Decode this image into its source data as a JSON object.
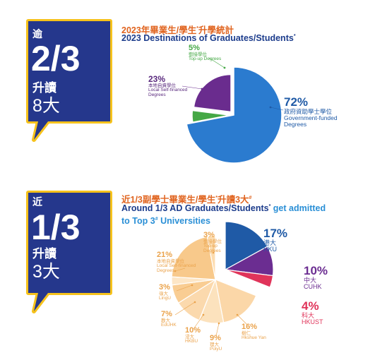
{
  "colors": {
    "badge_fill": "#25378c",
    "badge_border": "#f6c21c",
    "title_orange": "#e0631e",
    "title_navy": "#1c3c8c",
    "title_highlight": "#2a8fd6"
  },
  "section1": {
    "badge": {
      "prefix": "逾",
      "fraction": "2/3",
      "line1": "升讀",
      "line2": "8大"
    },
    "title_zh": "2023年畢業生/學生",
    "title_zh_sup": "*",
    "title_zh_tail": "升學統計",
    "title_en": "2023 Destinations of Graduates/Students",
    "title_en_sup": "*"
  },
  "section2": {
    "badge": {
      "prefix": "近",
      "fraction": "1/3",
      "line1": "升讀",
      "line2": "3大"
    },
    "title_zh": "近1/3副學士畢業生/學生",
    "title_zh_sup": "*",
    "title_zh_tail": "升讀3大",
    "title_zh_sup2": "#",
    "title_en_a": "Around 1/3 AD Graduates/Students",
    "title_en_sup": "*",
    "title_en_b": " get admitted",
    "title_en_c": "to Top 3",
    "title_en_sup2": "#",
    "title_en_d": " Universities"
  },
  "chart_data": [
    {
      "type": "pie",
      "title": "2023 Destinations of Graduates/Students",
      "slices": [
        {
          "pct_label": "72%",
          "value": 72,
          "zh": "政府資助學士學位",
          "en1": "Government-funded",
          "en2": "Degrees",
          "color": "#2b7bcf",
          "exploded": false
        },
        {
          "pct_label": "5%",
          "value": 5,
          "zh": "銜接學位",
          "en1": "Top-up Degrees",
          "en2": "",
          "color": "#45a845",
          "exploded": true
        },
        {
          "pct_label": "23%",
          "value": 23,
          "zh": "本地自資學位",
          "en1": "Local Self-financed",
          "en2": "Degrees",
          "color": "#6a2c8e",
          "exploded": true
        }
      ]
    },
    {
      "type": "pie",
      "title": "Around 1/3 AD Graduates/Students get admitted to Top 3 Universities",
      "slices": [
        {
          "pct_label": "17%",
          "value": 17,
          "zh": "港大",
          "en1": "HKU",
          "color": "#1f5aa6",
          "highlight": true
        },
        {
          "pct_label": "10%",
          "value": 10,
          "zh": "中大",
          "en1": "CUHK",
          "color": "#6b2d91",
          "highlight": true
        },
        {
          "pct_label": "4%",
          "value": 4,
          "zh": "科大",
          "en1": "HKUST",
          "color": "#e0345a",
          "highlight": true
        },
        {
          "pct_label": "16%",
          "value": 16,
          "zh": "樹仁",
          "en1": "Hkshue Yan",
          "color": "#fbd7a8",
          "highlight": false
        },
        {
          "pct_label": "9%",
          "value": 9,
          "zh": "理大",
          "en1": "PolyU",
          "color": "#fce2bd",
          "highlight": false
        },
        {
          "pct_label": "10%",
          "value": 10,
          "zh": "浸大",
          "en1": "HKBU",
          "color": "#fbd9ad",
          "highlight": false
        },
        {
          "pct_label": "7%",
          "value": 7,
          "zh": "教大",
          "en1": "EdUHK",
          "color": "#f9cd93",
          "highlight": false
        },
        {
          "pct_label": "3%",
          "value": 3,
          "zh": "嶺大",
          "en1": "LingU",
          "color": "#fde6c6",
          "highlight": false
        },
        {
          "pct_label": "21%",
          "value": 21,
          "zh": "本地自資學位",
          "en1": "Local Self-financed",
          "en2": "Degrees",
          "color": "#f8c98b",
          "highlight": false
        },
        {
          "pct_label": "3%",
          "value": 3,
          "zh": "銜接學位",
          "en1": "Top-up",
          "en2": "Degrees",
          "color": "#fcdcb0",
          "highlight": false
        }
      ]
    }
  ]
}
